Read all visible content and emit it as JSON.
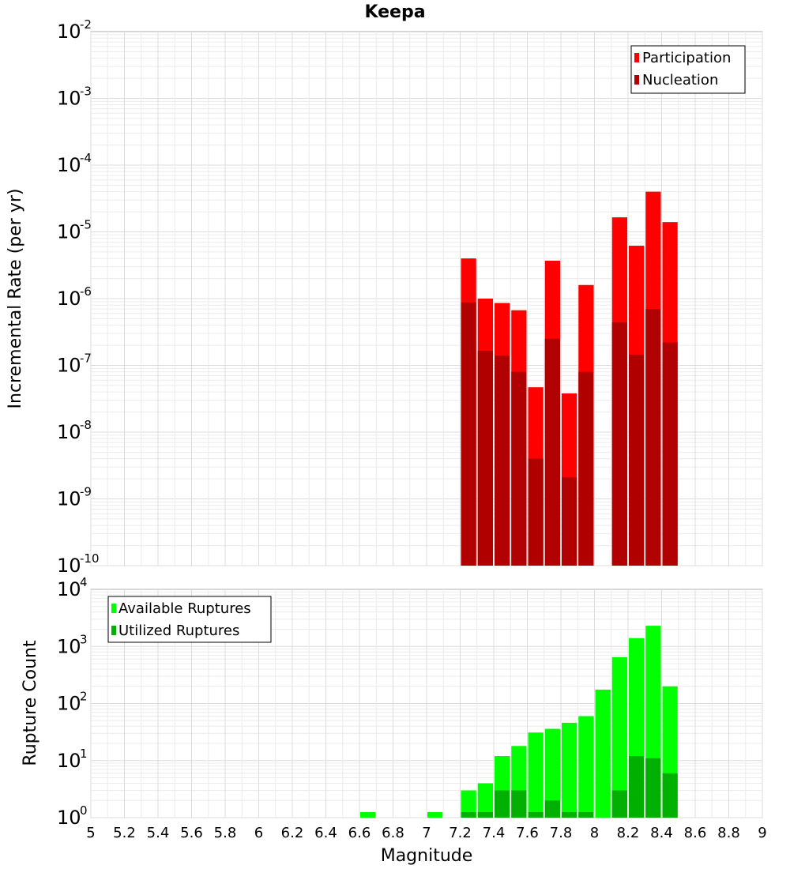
{
  "chart_data": [
    {
      "type": "bar",
      "title": "Keepa",
      "ylabel": "Incremental Rate (per yr)",
      "xlabel": "",
      "x_range": [
        5,
        9
      ],
      "ylim": [
        1e-10,
        0.01
      ],
      "yscale": "log",
      "grid": true,
      "legend_position": "top-right",
      "bin_width": 0.1,
      "ytick_bases": [
        "10",
        "10",
        "10",
        "10",
        "10",
        "10",
        "10",
        "10",
        "10"
      ],
      "ytick_exponents": [
        "-10",
        "-9",
        "-8",
        "-7",
        "-6",
        "-5",
        "-4",
        "-3",
        "-2"
      ],
      "x": [
        7.25,
        7.35,
        7.45,
        7.55,
        7.65,
        7.75,
        7.85,
        7.95,
        8.15,
        8.25,
        8.35,
        8.45
      ],
      "series": [
        {
          "name": "Participation",
          "color": "#ff0000",
          "values": [
            4e-06,
            1e-06,
            8.6e-07,
            6.7e-07,
            4.7e-08,
            3.7e-06,
            3.8e-08,
            1.6e-06,
            1.65e-05,
            6.2e-06,
            4e-05,
            1.4e-05
          ]
        },
        {
          "name": "Nucleation",
          "color": "#b00000",
          "values": [
            8.8e-07,
            1.65e-07,
            1.4e-07,
            8e-08,
            4e-09,
            2.5e-07,
            2.1e-09,
            8e-08,
            4.4e-07,
            1.45e-07,
            7e-07,
            2.2e-07
          ]
        }
      ]
    },
    {
      "type": "bar",
      "title": "",
      "ylabel": "Rupture Count",
      "xlabel": "Magnitude",
      "xlim": [
        5,
        9
      ],
      "xticks": [
        "5",
        "5.2",
        "5.4",
        "5.6",
        "5.8",
        "6",
        "6.2",
        "6.4",
        "6.6",
        "6.8",
        "7",
        "7.2",
        "7.4",
        "7.6",
        "7.8",
        "8",
        "8.2",
        "8.4",
        "8.6",
        "8.8",
        "9"
      ],
      "ylim": [
        1,
        10000
      ],
      "yscale": "log",
      "grid": true,
      "legend_position": "top-left",
      "bin_width": 0.1,
      "ytick_bases": [
        "10",
        "10",
        "10",
        "10",
        "10"
      ],
      "ytick_exponents": [
        "0",
        "1",
        "2",
        "3",
        "4"
      ],
      "series": [
        {
          "name": "Available Ruptures",
          "color": "#00ff00",
          "x": [
            6.65,
            7.05,
            7.25,
            7.35,
            7.45,
            7.55,
            7.65,
            7.75,
            7.85,
            7.95,
            8.05,
            8.15,
            8.25,
            8.35,
            8.45
          ],
          "values": [
            1,
            1,
            3,
            4,
            12,
            18,
            31,
            36,
            46,
            60,
            175,
            650,
            1400,
            2300,
            200
          ]
        },
        {
          "name": "Utilized Ruptures",
          "color": "#00b000",
          "x": [
            7.25,
            7.35,
            7.45,
            7.55,
            7.65,
            7.75,
            7.85,
            7.95,
            8.15,
            8.25,
            8.35,
            8.45
          ],
          "values": [
            1,
            1,
            3,
            3,
            1,
            2,
            1,
            1,
            3,
            12,
            11,
            6
          ]
        }
      ]
    }
  ]
}
